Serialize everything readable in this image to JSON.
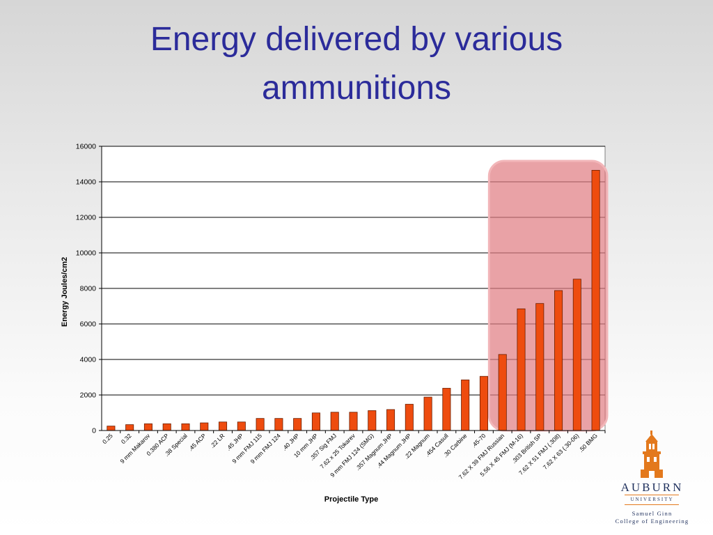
{
  "slide": {
    "title_line1": "Energy delivered by various",
    "title_line2": "ammunitions"
  },
  "logo": {
    "name": "AUBURN",
    "university": "UNIVERSITY",
    "line1": "Samuel Ginn",
    "line2": "College of Engineering",
    "icon": "tower-icon",
    "color": "#e3791d"
  },
  "colors": {
    "bar": "#ee4c0f",
    "bar_stroke": "#6b1e00",
    "highlight": "#e07b80",
    "title": "#2b2b9a"
  },
  "chart_data": {
    "type": "bar",
    "categories": [
      "0.25",
      "0.32",
      "9 mm Makarov",
      "0.380 ACP",
      ".38 Special",
      ".45 ACP",
      ".22 LR",
      ".45 JHP",
      "9 mm FMJ 115",
      "9 mm FMJ 124",
      ".40 JHP",
      "10 mm JHP",
      ".357 Sig FMJ",
      "7.62 x 25 Tokarev",
      "9 mm FMJ 124 (SMG)",
      ".357 Magnum JHP",
      ".44 Magnum JHP",
      ".22 Magnum",
      ".454 Casull",
      ".30 Carbine",
      ".45-70",
      "7.62 X 39 FMJ Russian",
      "5.56 X 45 FMJ (M-16)",
      ".303 British SP",
      "7.62 X 51 FMJ (.308)",
      "7.62 X 63 (.30-06)",
      ".50 BMG"
    ],
    "values": [
      250,
      330,
      380,
      380,
      380,
      430,
      480,
      480,
      680,
      680,
      680,
      990,
      1030,
      1030,
      1120,
      1180,
      1480,
      1880,
      2380,
      2850,
      3050,
      4280,
      6850,
      7150,
      7880,
      8520,
      14650
    ],
    "xlabel": "Projectile Type",
    "ylabel": "Energy Joules/cm2",
    "ylim": [
      0,
      16000
    ],
    "yticks": [
      "0",
      "2000",
      "4000",
      "6000",
      "8000",
      "10000",
      "12000",
      "14000",
      "16000"
    ],
    "grid": true,
    "highlight_categories": [
      "7.62 X 39 FMJ Russian",
      "5.56 X 45 FMJ (M-16)",
      ".303 British SP",
      "7.62 X 51 FMJ (.308)",
      "7.62 X 63 (.30-06)",
      ".50 BMG"
    ]
  }
}
